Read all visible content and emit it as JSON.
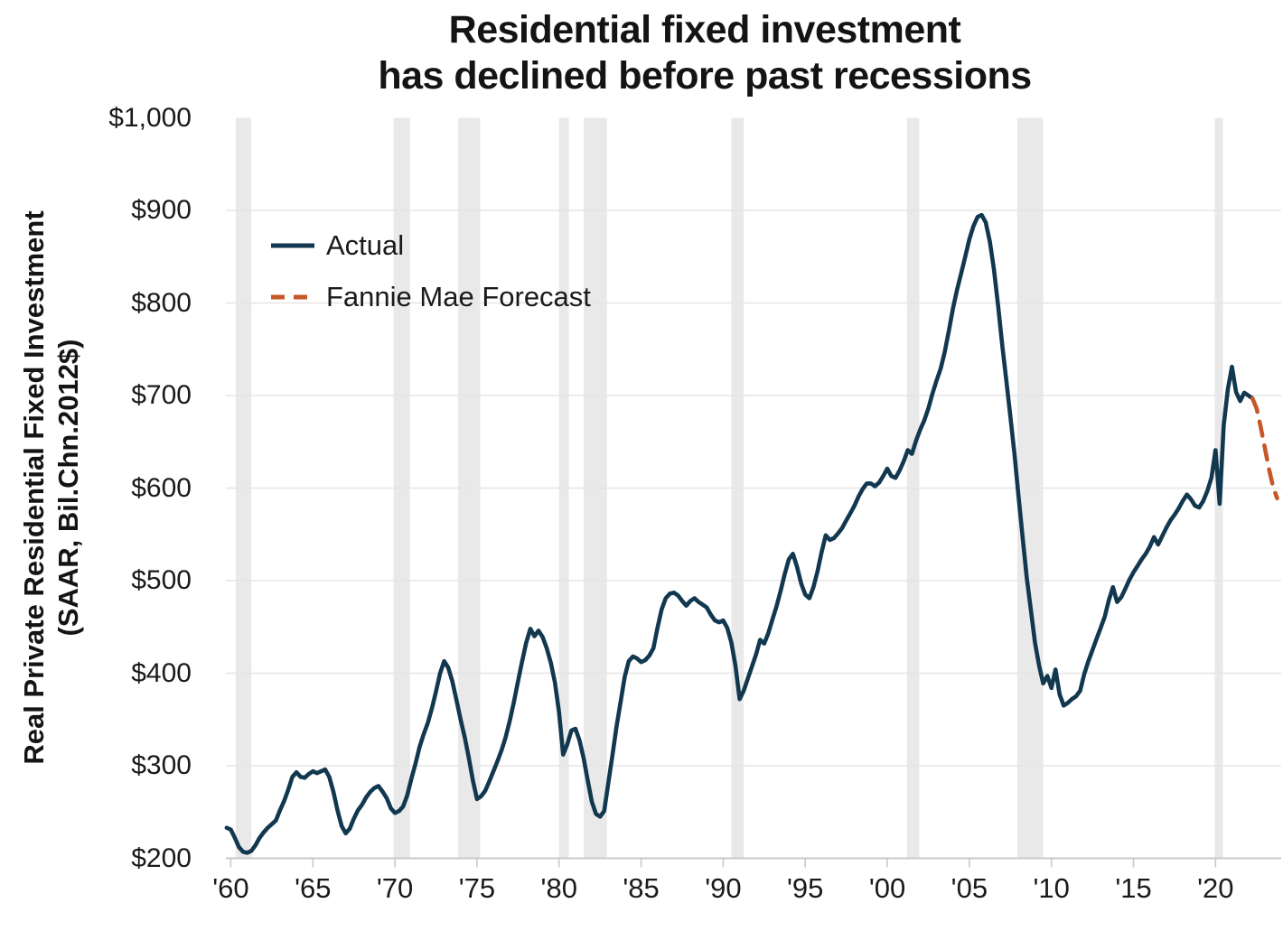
{
  "header": {
    "title_line1": "Residential fixed investment",
    "title_line2": "has declined before past recessions"
  },
  "y_axis": {
    "title_line1": "Real Private Residential Fixed Investment",
    "title_line2": "(SAAR, Bil.Chn.2012$)"
  },
  "chart_data": {
    "type": "line",
    "title": "Residential fixed investment has declined before past recessions",
    "xlabel": "",
    "ylabel": "Real Private Residential Fixed Investment (SAAR, Bil.Chn.2012$)",
    "xlim": [
      1959.7,
      2024.0
    ],
    "ylim": [
      200,
      1000
    ],
    "grid": "horizontal",
    "legend_position": "upper-left",
    "colors": {
      "actual": "#123850",
      "forecast": "#C65828",
      "recession_band": "#E9E9E9",
      "gridline": "#E5E5E5",
      "axis": "#C9C9C9",
      "text": "#1A1A1A"
    },
    "y_ticks": [
      {
        "label": "$1,000",
        "value": 1000
      },
      {
        "label": "$900",
        "value": 900
      },
      {
        "label": "$800",
        "value": 800
      },
      {
        "label": "$700",
        "value": 700
      },
      {
        "label": "$600",
        "value": 600
      },
      {
        "label": "$500",
        "value": 500
      },
      {
        "label": "$400",
        "value": 400
      },
      {
        "label": "$300",
        "value": 300
      },
      {
        "label": "$200",
        "value": 200
      }
    ],
    "y_gridlines": [
      300,
      400,
      500,
      600,
      700,
      800,
      900
    ],
    "x_ticks": [
      {
        "label": "'60",
        "year": 1960
      },
      {
        "label": "'65",
        "year": 1965
      },
      {
        "label": "'70",
        "year": 1970
      },
      {
        "label": "'75",
        "year": 1975
      },
      {
        "label": "'80",
        "year": 1980
      },
      {
        "label": "'85",
        "year": 1985
      },
      {
        "label": "'90",
        "year": 1990
      },
      {
        "label": "'95",
        "year": 1995
      },
      {
        "label": "'00",
        "year": 2000
      },
      {
        "label": "'05",
        "year": 2005
      },
      {
        "label": "'10",
        "year": 2010
      },
      {
        "label": "'15",
        "year": 2015
      },
      {
        "label": "'20",
        "year": 2020
      }
    ],
    "recessions": [
      [
        1960.3,
        1961.25
      ],
      [
        1969.92,
        1970.92
      ],
      [
        1973.85,
        1975.2
      ],
      [
        1980.0,
        1980.6
      ],
      [
        1981.5,
        1982.92
      ],
      [
        1990.5,
        1991.25
      ],
      [
        2001.2,
        2001.95
      ],
      [
        2007.92,
        2009.5
      ],
      [
        2019.95,
        2020.45
      ]
    ],
    "series": [
      {
        "name": "Actual",
        "color": "#123850",
        "style": "solid",
        "frequency": "quarterly",
        "start_year": 1959.75,
        "values": [
          233,
          231,
          222,
          212,
          207,
          206,
          208,
          214,
          222,
          228,
          233,
          237,
          241,
          252,
          262,
          274,
          288,
          293,
          288,
          287,
          291,
          294,
          292,
          294,
          296,
          288,
          272,
          252,
          235,
          227,
          232,
          243,
          252,
          258,
          266,
          272,
          276,
          278,
          272,
          265,
          254,
          249,
          251,
          256,
          268,
          286,
          302,
          320,
          334,
          346,
          362,
          380,
          400,
          413,
          406,
          391,
          371,
          350,
          331,
          309,
          284,
          264,
          267,
          273,
          283,
          294,
          305,
          317,
          331,
          349,
          369,
          391,
          413,
          433,
          448,
          440,
          446,
          439,
          427,
          411,
          390,
          358,
          312,
          323,
          338,
          340,
          327,
          308,
          284,
          261,
          248,
          245,
          251,
          281,
          311,
          342,
          369,
          396,
          413,
          418,
          416,
          412,
          414,
          419,
          427,
          449,
          469,
          481,
          486,
          487,
          484,
          478,
          473,
          478,
          481,
          477,
          474,
          471,
          463,
          457,
          455,
          457,
          449,
          433,
          408,
          372,
          381,
          394,
          407,
          420,
          436,
          432,
          443,
          458,
          472,
          489,
          507,
          523,
          529,
          515,
          497,
          485,
          481,
          493,
          510,
          531,
          549,
          544,
          546,
          551,
          557,
          565,
          573,
          581,
          591,
          599,
          605,
          605,
          602,
          606,
          613,
          621,
          613,
          611,
          619,
          629,
          641,
          637,
          651,
          663,
          673,
          686,
          702,
          716,
          729,
          747,
          770,
          794,
          814,
          832,
          850,
          869,
          883,
          893,
          895,
          887,
          866,
          836,
          797,
          755,
          717,
          677,
          637,
          590,
          546,
          503,
          468,
          433,
          408,
          389,
          397,
          384,
          404,
          377,
          365,
          368,
          372,
          375,
          381,
          399,
          413,
          425,
          437,
          449,
          461,
          479,
          493,
          477,
          482,
          491,
          501,
          509,
          516,
          523,
          529,
          537,
          547,
          539,
          548,
          557,
          565,
          571,
          578,
          586,
          593,
          588,
          581,
          579,
          586,
          597,
          611,
          641,
          583,
          668,
          707,
          731,
          704,
          694,
          703,
          700,
          697
        ]
      },
      {
        "name": "Fannie Mae Forecast",
        "color": "#C65828",
        "style": "dashed",
        "frequency": "quarterly",
        "start_year": 2022.25,
        "values": [
          697,
          686,
          666,
          644,
          621,
          602,
          589
        ]
      }
    ]
  }
}
